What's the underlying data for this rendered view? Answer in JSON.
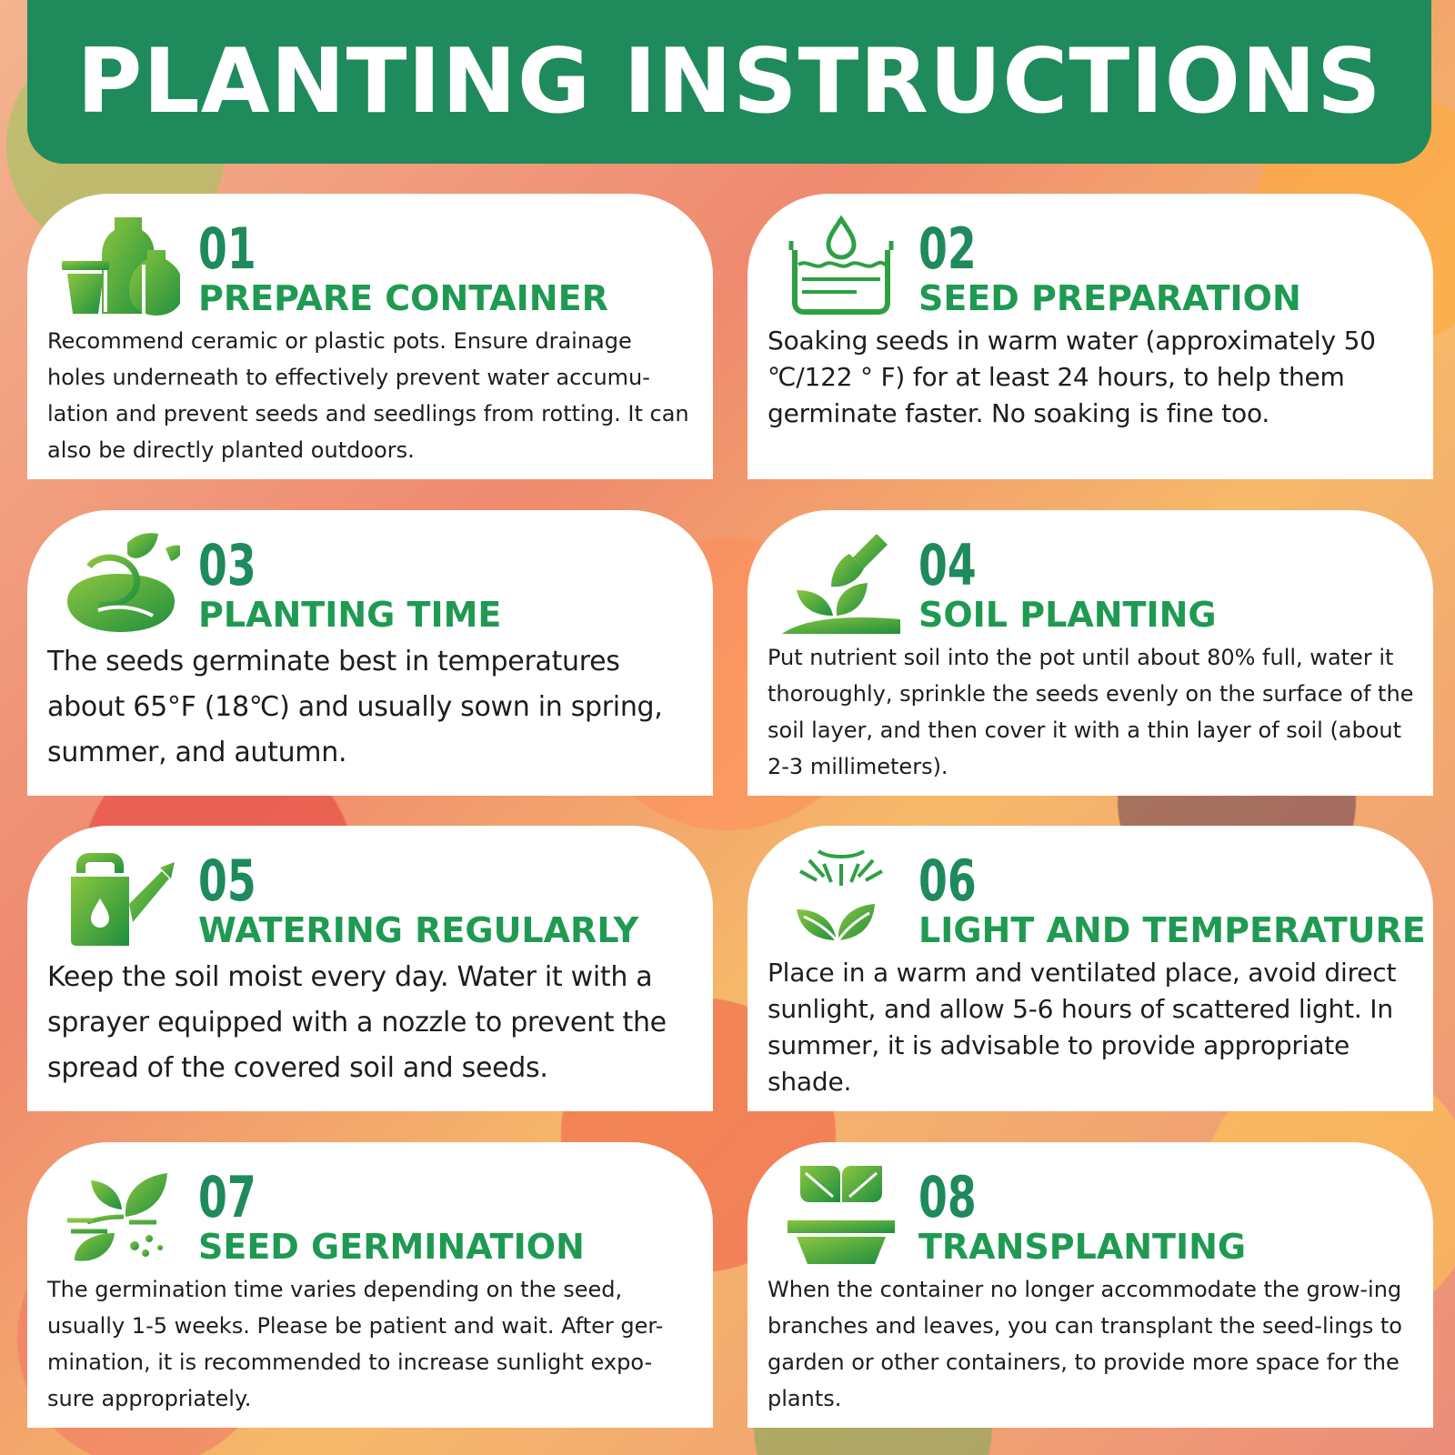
{
  "header": {
    "title": "PLANTING INSTRUCTIONS"
  },
  "colors": {
    "banner": "#1f8a5b",
    "accent": "#1f9a52",
    "card": "#ffffff",
    "text": "#1d1d1d"
  },
  "steps": [
    {
      "number": "01",
      "title": "PREPARE CONTAINER",
      "icon": "pots-icon",
      "text": "Recommend ceramic or plastic pots. Ensure drainage holes underneath to effectively prevent water accumu-lation and prevent seeds and seedlings from rotting. It can also be directly planted outdoors."
    },
    {
      "number": "02",
      "title": "SEED PREPARATION",
      "icon": "water-basin-icon",
      "text": "Soaking seeds in warm water (approximately 50 ℃/122 ° F) for at least 24 hours, to help them germinate faster. No soaking is fine too."
    },
    {
      "number": "03",
      "title": "PLANTING TIME",
      "icon": "sprouting-seed-icon",
      "text": "The seeds germinate best in temperatures about 65°F (18℃) and usually sown in spring, summer, and autumn."
    },
    {
      "number": "04",
      "title": "SOIL PLANTING",
      "icon": "trowel-plant-icon",
      "text": "Put nutrient soil into the pot until about 80% full, water it thoroughly, sprinkle the seeds evenly on the surface of the soil layer, and then cover it with a thin layer of soil (about 2-3 millimeters)."
    },
    {
      "number": "05",
      "title": "WATERING REGULARLY",
      "icon": "watering-can-icon",
      "text": "Keep the soil moist every day. Water it with a sprayer equipped with a nozzle to prevent the spread of the covered soil and seeds."
    },
    {
      "number": "06",
      "title": "LIGHT AND TEMPERATURE",
      "icon": "sun-plant-icon",
      "text": "Place in a warm and ventilated place, avoid direct sunlight, and allow 5-6 hours of scattered light. In summer, it is advisable to provide appropriate shade."
    },
    {
      "number": "07",
      "title": "SEED GERMINATION",
      "icon": "germinating-seed-icon",
      "text": "The germination time varies depending on the seed, usually 1-5 weeks. Please be patient and wait. After ger-mination, it is recommended to increase sunlight expo-sure appropriately."
    },
    {
      "number": "08",
      "title": "TRANSPLANTING",
      "icon": "potted-seedling-icon",
      "text": "When the container no longer accommodate the grow-ing branches and leaves, you can transplant the seed-lings to garden or other containers, to provide more space for the plants."
    }
  ]
}
